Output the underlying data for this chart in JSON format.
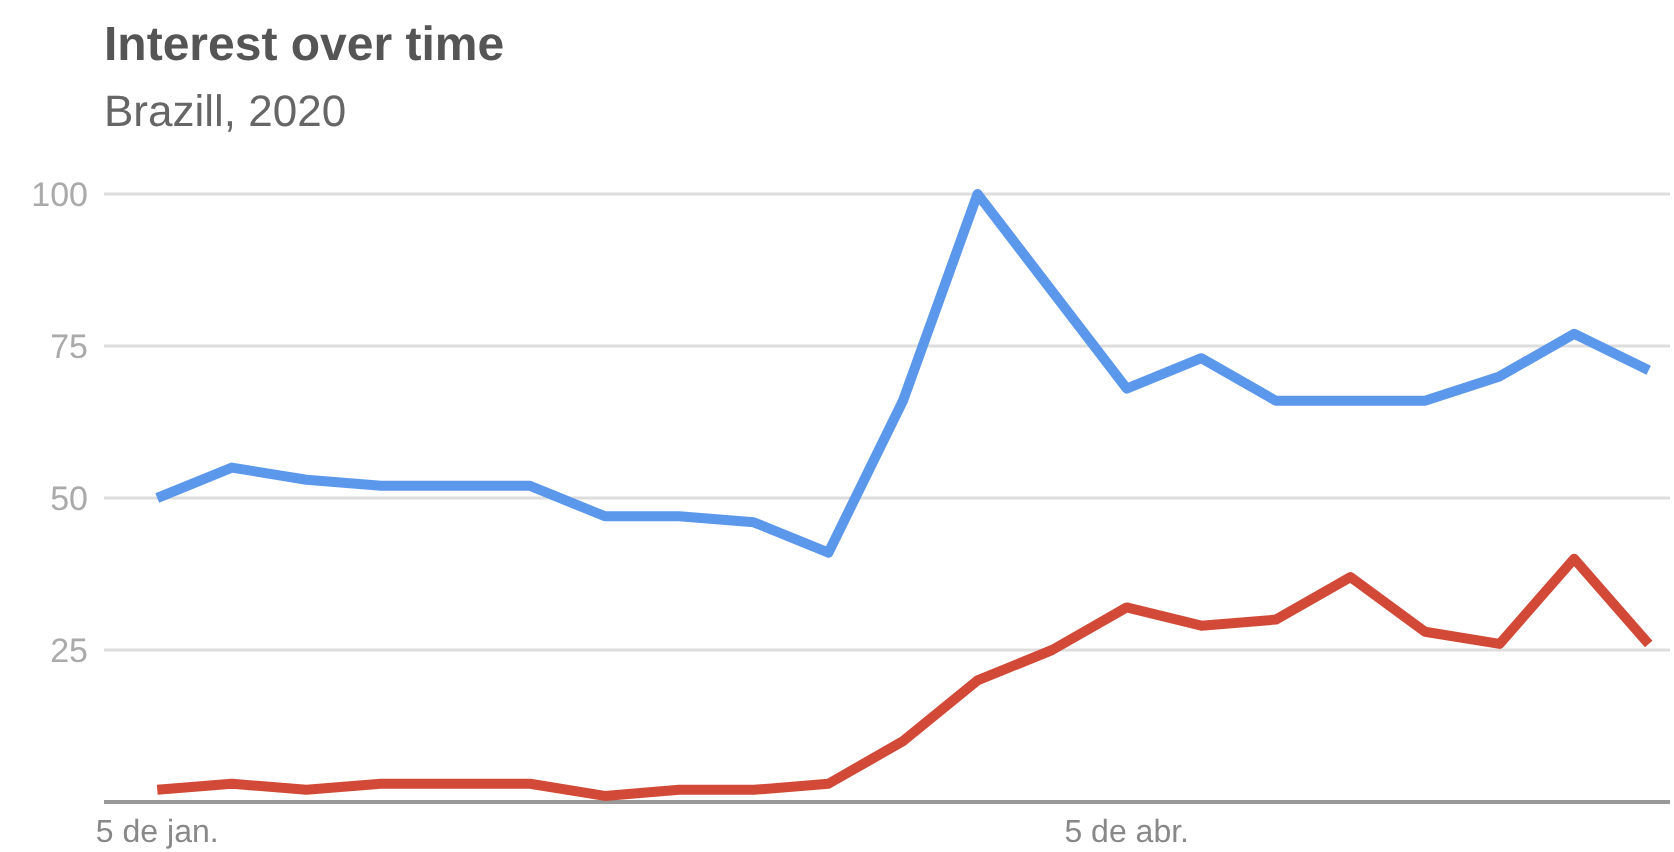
{
  "chart_data": {
    "type": "line",
    "title": "Interest over time",
    "subtitle": "Brazill, 2020",
    "x": [
      "2020-01-05",
      "2020-01-12",
      "2020-01-19",
      "2020-01-26",
      "2020-02-02",
      "2020-02-09",
      "2020-02-16",
      "2020-02-23",
      "2020-03-01",
      "2020-03-08",
      "2020-03-15",
      "2020-03-22",
      "2020-03-29",
      "2020-04-05",
      "2020-04-12",
      "2020-04-19",
      "2020-04-26",
      "2020-05-03",
      "2020-05-10",
      "2020-05-17",
      "2020-05-24"
    ],
    "series": [
      {
        "color": "#5b97eb",
        "values": [
          50,
          55,
          53,
          52,
          52,
          52,
          47,
          47,
          46,
          41,
          66,
          100,
          84,
          68,
          73,
          66,
          66,
          66,
          70,
          77,
          71
        ]
      },
      {
        "color": "#d24a37",
        "values": [
          2,
          3,
          2,
          3,
          3,
          3,
          1,
          2,
          2,
          3,
          10,
          20,
          25,
          32,
          29,
          30,
          37,
          28,
          26,
          40,
          26
        ]
      }
    ],
    "xlim": [
      "2019-12-31",
      "2020-05-26"
    ],
    "xticks": [
      {
        "value": "2020-01-05",
        "label": "5 de jan."
      },
      {
        "value": "2020-04-05",
        "label": "5 de abr."
      }
    ],
    "ylim": [
      0,
      100
    ],
    "yticks": [
      {
        "value": 0,
        "label": null
      },
      25,
      50,
      75,
      100
    ],
    "grid": "y",
    "marker": "none",
    "line_style": "solid"
  }
}
